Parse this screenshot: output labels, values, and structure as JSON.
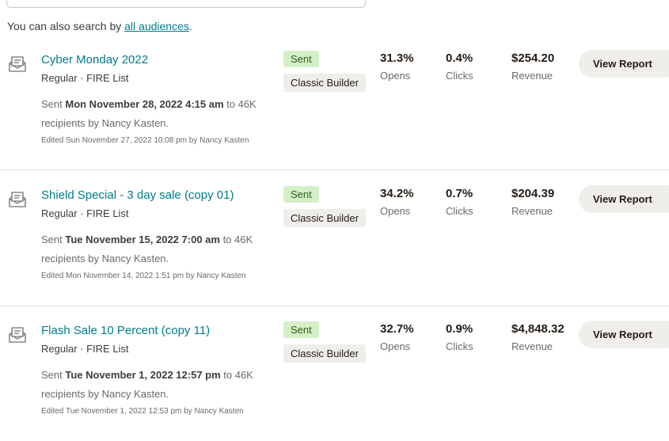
{
  "search": {
    "hint_prefix": "You can also search by ",
    "hint_link": "all audiences",
    "hint_suffix": "."
  },
  "campaigns": [
    {
      "title": "Cyber Monday 2022",
      "type": "Regular",
      "audience": "FIRE List",
      "sent_prefix": "Sent ",
      "sent_date": "Mon November 28, 2022 4:15 am",
      "sent_suffix": " to 46K recipients by Nancy Kasten.",
      "edited": "Edited Sun November 27, 2022 10:08 pm by Nancy Kasten",
      "status": "Sent",
      "builder": "Classic Builder",
      "opens": "31.3%",
      "opens_label": "Opens",
      "clicks": "0.4%",
      "clicks_label": "Clicks",
      "revenue": "$254.20",
      "revenue_label": "Revenue",
      "button": "View Report"
    },
    {
      "title": "Shield Special - 3 day sale (copy 01)",
      "type": "Regular",
      "audience": "FIRE List",
      "sent_prefix": "Sent ",
      "sent_date": "Tue November 15, 2022 7:00 am",
      "sent_suffix": " to 46K recipients by Nancy Kasten.",
      "edited": "Edited Mon November 14, 2022 1:51 pm by Nancy Kasten",
      "status": "Sent",
      "builder": "Classic Builder",
      "opens": "34.2%",
      "opens_label": "Opens",
      "clicks": "0.7%",
      "clicks_label": "Clicks",
      "revenue": "$204.39",
      "revenue_label": "Revenue",
      "button": "View Report"
    },
    {
      "title": "Flash Sale 10 Percent (copy 11)",
      "type": "Regular",
      "audience": "FIRE List",
      "sent_prefix": "Sent ",
      "sent_date": "Tue November 1, 2022 12:57 pm",
      "sent_suffix": " to 46K recipients by Nancy Kasten.",
      "edited": "Edited Tue November 1, 2022 12:53 pm by Nancy Kasten",
      "status": "Sent",
      "builder": "Classic Builder",
      "opens": "32.7%",
      "opens_label": "Opens",
      "clicks": "0.9%",
      "clicks_label": "Clicks",
      "revenue": "$4,848.32",
      "revenue_label": "Revenue",
      "button": "View Report"
    }
  ],
  "icons": {
    "campaign": "email-campaign-icon"
  },
  "colors": {
    "link": "#007c89",
    "sent_badge_bg": "#d5efc8",
    "sent_badge_text": "#2d6117",
    "builder_badge_bg": "#efeeea"
  }
}
